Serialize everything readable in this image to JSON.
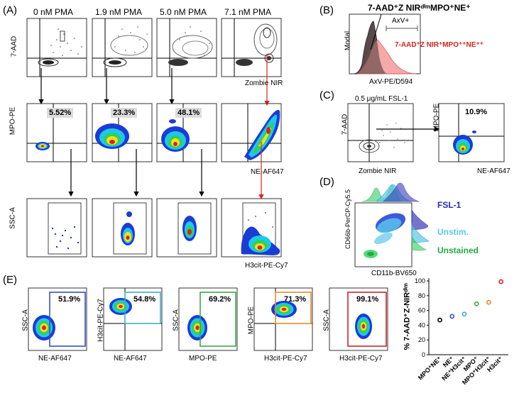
{
  "panels": {
    "A": {
      "label": "(A)",
      "columns": [
        "0 nM PMA",
        "1.9 nM PMA",
        "5.0 nM PMA",
        "7.1 nM PMA"
      ],
      "row1": {
        "ylabel": "7-AAD",
        "xlabel": "Zombie NIR"
      },
      "row2": {
        "ylabel": "MPO-PE",
        "xlabel": "NE-AF647",
        "percents": [
          "5.52%",
          "23.3%",
          "48.1%"
        ]
      },
      "row3": {
        "ylabel": "SSC-A",
        "xlabel": "H3cit-PE-Cy7"
      }
    },
    "B": {
      "label": "(B)",
      "title": "7-AAD⁺Z NIRᵈⁱᵐMPO⁺NE⁺",
      "gate_label": "AxV+",
      "red_label": "7-AAD⁺Z NIR⁺MPO⁺⁺NE⁺⁺",
      "ylabel": "Modal",
      "xlabel": "AxV-PE/D594"
    },
    "C": {
      "label": "(C)",
      "title": "0.5 μg/mL FSL-1",
      "left": {
        "ylabel": "7-AAD",
        "xlabel": "Zombie NIR"
      },
      "right": {
        "ylabel": "MPO-PE",
        "xlabel": "NE-AF647",
        "percent": "10.9%"
      }
    },
    "D": {
      "label": "(D)",
      "ylabel": "CD66b-PerCP-Cy5.5",
      "xlabel": "CD11b-BV650",
      "legend": [
        {
          "name": "FSL-1",
          "color": "#2a2ab0"
        },
        {
          "name": "Unstim.",
          "color": "#5bc8e8"
        },
        {
          "name": "Unstained",
          "color": "#22aa44"
        }
      ]
    },
    "E": {
      "label": "(E)",
      "plots": [
        {
          "pct": "51.9%",
          "ylabel": "SSC-A",
          "xlabel": "NE-AF647",
          "color": "#3b4fc4"
        },
        {
          "pct": "54.8%",
          "ylabel": "H3cit-PE-Cy7",
          "xlabel": "NE-AF647",
          "color": "#3bb0c4"
        },
        {
          "pct": "69.2%",
          "ylabel": "SSC-A",
          "xlabel": "MPO-PE",
          "color": "#3ba84a"
        },
        {
          "pct": "71.3%",
          "ylabel": "MPO-PE",
          "xlabel": "H3cit-PE-Cy7",
          "color": "#e88a2a"
        },
        {
          "pct": "99.1%",
          "ylabel": "SSC-A",
          "xlabel": "H3cit-PE-Cy7",
          "color": "#c42a2a"
        }
      ]
    }
  },
  "chart_data": {
    "type": "scatter",
    "title": "",
    "ylabel": "% 7-AAD⁺Z-NIRᵈⁱᵐ",
    "xlabel": "",
    "ylim": [
      0,
      100
    ],
    "yticks": [
      0,
      20,
      40,
      60,
      80,
      100
    ],
    "categories": [
      "MPO⁺NE⁺",
      "NE⁺",
      "NE⁺H3cit⁺",
      "MPO⁺",
      "MPO⁺H3cit⁺",
      "H3cit⁺"
    ],
    "values": [
      47,
      52,
      55,
      69,
      71,
      99
    ],
    "colors": [
      "#000000",
      "#3b4fc4",
      "#3bb0c4",
      "#3ba84a",
      "#e88a2a",
      "#c42a2a"
    ]
  }
}
